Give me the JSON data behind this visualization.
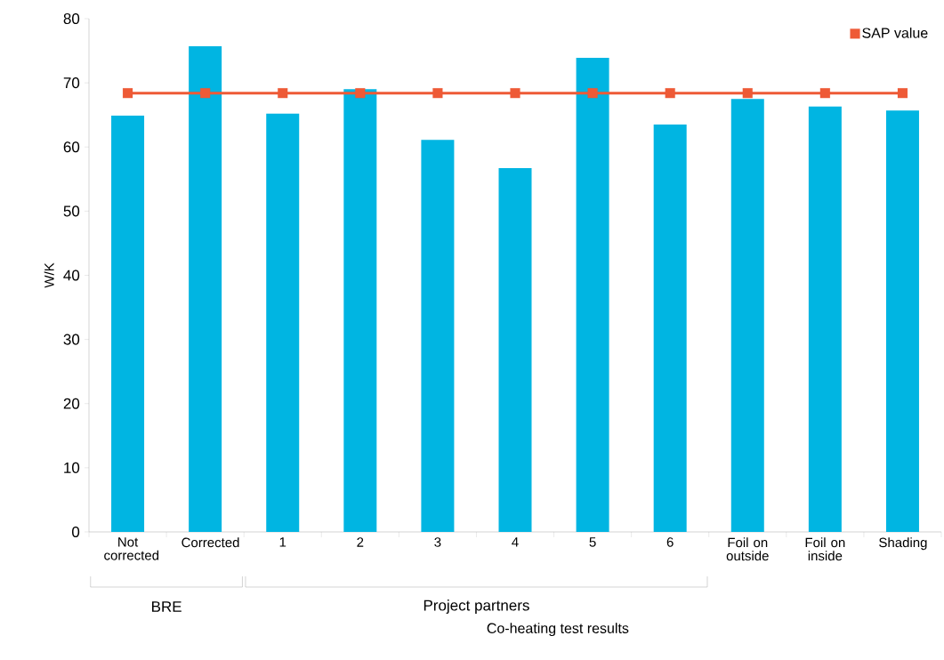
{
  "chart_data": {
    "type": "bar",
    "xlabel": "Co-heating test results",
    "ylabel": "W/K",
    "categories": [
      "Not corrected",
      "Corrected",
      "1",
      "2",
      "3",
      "4",
      "5",
      "6",
      "Foil on outside",
      "Foil on inside",
      "Shading"
    ],
    "series": [
      {
        "color": "#00b5e2",
        "values": [
          64.9,
          75.7,
          65.2,
          69.0,
          61.1,
          56.7,
          73.9,
          63.5,
          67.5,
          66.3,
          65.7
        ]
      },
      {
        "type": "line",
        "name": "SAP value",
        "color": "#ee5a36",
        "marker": "square",
        "values": [
          68.4,
          68.4,
          68.4,
          68.4,
          68.4,
          68.4,
          68.4,
          68.4,
          68.4,
          68.4,
          68.4
        ]
      }
    ],
    "ylim": [
      0,
      80
    ],
    "yticks": [
      0,
      10,
      20,
      30,
      40,
      50,
      60,
      70,
      80
    ],
    "legend": "top right",
    "grid": false,
    "annotations": [
      "BRE",
      "Project partners"
    ]
  }
}
